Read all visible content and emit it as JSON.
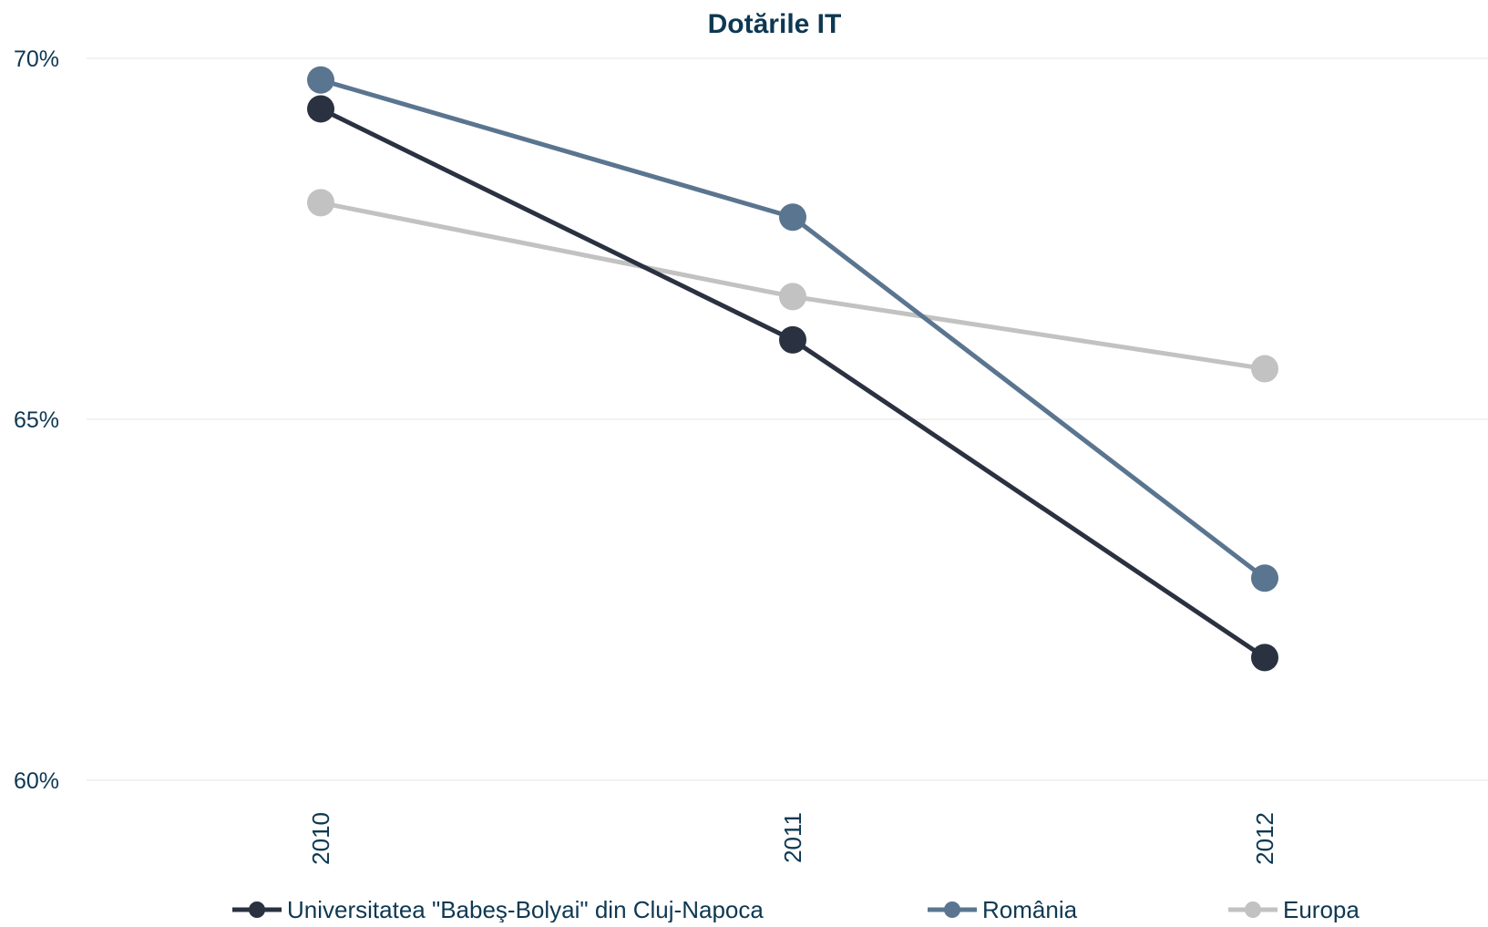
{
  "chart_data": {
    "type": "line",
    "title": "Dotările IT",
    "xlabel": "",
    "ylabel": "",
    "categories": [
      "2010",
      "2011",
      "2012"
    ],
    "ylim": [
      60,
      70
    ],
    "y_ticks": [
      60,
      65,
      70
    ],
    "y_tick_labels": [
      "60%",
      "65%",
      "70%"
    ],
    "grid": true,
    "legend_position": "bottom",
    "series": [
      {
        "name": "Universitatea \"Babeş-Bolyai\" din Cluj-Napoca",
        "values": [
          69.3,
          66.1,
          61.7
        ],
        "color": "#2a3140"
      },
      {
        "name": "România",
        "values": [
          69.7,
          67.8,
          62.8
        ],
        "color": "#5a758f"
      },
      {
        "name": "Europa",
        "values": [
          68.0,
          66.7,
          65.7
        ],
        "color": "#c2c2c2"
      }
    ]
  },
  "colors": {
    "title": "#0e3852",
    "axis_text": "#0e3852",
    "legend_text": "#0e3852",
    "grid": "#e6e6e6"
  }
}
